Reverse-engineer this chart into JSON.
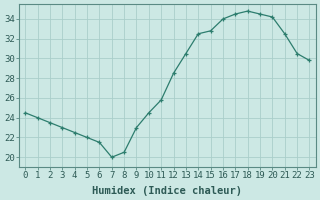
{
  "x": [
    0,
    1,
    2,
    3,
    4,
    5,
    6,
    7,
    8,
    9,
    10,
    11,
    12,
    13,
    14,
    15,
    16,
    17,
    18,
    19,
    20,
    21,
    22,
    23
  ],
  "y": [
    24.5,
    24.0,
    23.5,
    23.0,
    22.5,
    22.0,
    21.5,
    20.0,
    20.5,
    23.0,
    24.5,
    25.8,
    28.5,
    30.5,
    32.5,
    32.8,
    34.0,
    34.5,
    34.8,
    34.5,
    34.2,
    32.5,
    30.5,
    29.8
  ],
  "line_color": "#2d7d6e",
  "marker": "+",
  "bg_color": "#cce8e4",
  "grid_color": "#aaceca",
  "axis_bg": "#cce8e4",
  "border_color": "#5a8a84",
  "xlabel": "Humidex (Indice chaleur)",
  "ylabel_ticks": [
    20,
    22,
    24,
    26,
    28,
    30,
    32,
    34
  ],
  "ylim": [
    19.0,
    35.5
  ],
  "xlim": [
    -0.5,
    23.5
  ],
  "tick_fontsize": 6.5,
  "label_fontsize": 7.5,
  "label_fontweight": "bold"
}
